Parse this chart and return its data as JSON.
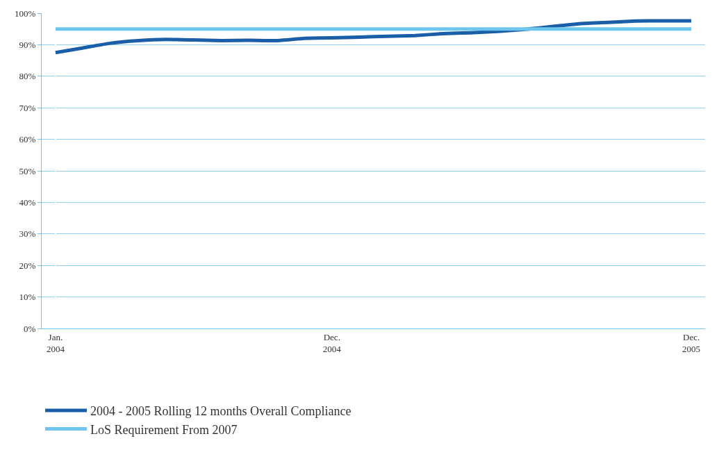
{
  "chart_data": {
    "type": "line",
    "categories": [
      "Jan.\n2004",
      null,
      null,
      null,
      null,
      null,
      null,
      null,
      null,
      null,
      "Dec.\n2004",
      null,
      null,
      null,
      null,
      null,
      null,
      null,
      null,
      null,
      null,
      null,
      null,
      "Dec.\n2005"
    ],
    "series": [
      {
        "name": "2004 - 2005 Rolling 12 months Overall Compliance",
        "color": "#1a5ea8",
        "values": [
          87.5,
          89,
          90.5,
          91.3,
          91.7,
          91.5,
          91.3,
          91.4,
          91.3,
          92,
          92.2,
          92.4,
          92.7,
          92.9,
          93.5,
          93.8,
          94.2,
          94.9,
          95.8,
          96.7,
          97.1,
          97.5,
          97.6,
          97.6
        ]
      },
      {
        "name": "LoS Requirement From 2007",
        "color": "#6ec6ee",
        "values": [
          95,
          95,
          95,
          95,
          95,
          95,
          95,
          95,
          95,
          95,
          95,
          95,
          95,
          95,
          95,
          95,
          95,
          95,
          95,
          95,
          95,
          95,
          95,
          95
        ]
      }
    ],
    "ylim": [
      0,
      100
    ],
    "yticks": [
      {
        "value": 0,
        "label": "0%"
      },
      {
        "value": 10,
        "label": "10%"
      },
      {
        "value": 20,
        "label": "20%"
      },
      {
        "value": 30,
        "label": "30%"
      },
      {
        "value": 40,
        "label": "40%"
      },
      {
        "value": 50,
        "label": "50%"
      },
      {
        "value": 60,
        "label": "60%"
      },
      {
        "value": 70,
        "label": "70%"
      },
      {
        "value": 80,
        "label": "80%"
      },
      {
        "value": 90,
        "label": "90%"
      },
      {
        "value": 100,
        "label": "100%"
      }
    ],
    "grid": "y",
    "legend": "bottom",
    "marker": "none",
    "line_style": "solid"
  }
}
